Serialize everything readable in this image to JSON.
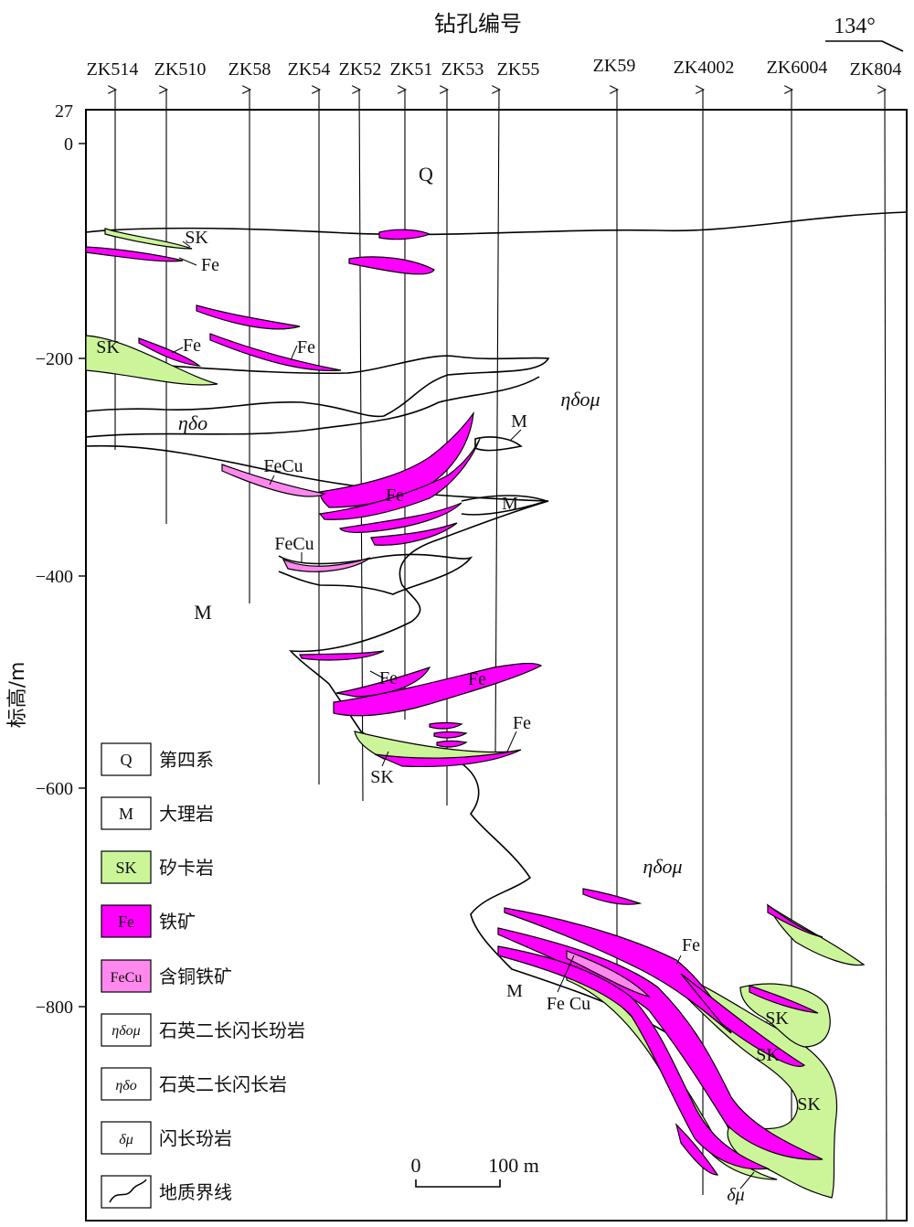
{
  "header": {
    "title": "钻孔编号",
    "azimuth": "134°"
  },
  "boreholes": [
    "ZK514",
    "ZK510",
    "ZK58",
    "ZK54",
    "ZK52",
    "ZK51",
    "ZK53",
    "ZK55",
    "ZK59",
    "ZK4002",
    "ZK6004",
    "ZK804"
  ],
  "axis": {
    "label": "标高/m",
    "ticks": [
      "27",
      "0",
      "−200",
      "−400",
      "−600",
      "−800"
    ]
  },
  "labels": {
    "Q": "Q",
    "SK": "SK",
    "Fe": "Fe",
    "FeCu": "FeCu",
    "Fe_Cu": "Fe Cu",
    "M": "M",
    "ndo": "ηδο",
    "ndom": "ηδομ",
    "dm": "δμ"
  },
  "legend": [
    {
      "code": "Q",
      "text": "第四系",
      "color": "#ffffff"
    },
    {
      "code": "M",
      "text": "大理岩",
      "color": "#ffffff"
    },
    {
      "code": "SK",
      "text": "矽卡岩",
      "color": "#ccf59a"
    },
    {
      "code": "Fe",
      "text": "铁矿",
      "color": "#ff00ff"
    },
    {
      "code": "FeCu",
      "text": "含铜铁矿",
      "color": "#ff88ee"
    },
    {
      "code": "ηδομ",
      "text": "石英二长闪长玢岩",
      "color": "#ffffff"
    },
    {
      "code": "ηδο",
      "text": "石英二长闪长岩",
      "color": "#ffffff"
    },
    {
      "code": "δμ",
      "text": "闪长玢岩",
      "color": "#ffffff"
    },
    {
      "code": "",
      "text": "地质界线",
      "color": "#ffffff"
    }
  ],
  "scale": {
    "zero": "0",
    "value": "100 m"
  },
  "colors": {
    "fe": "#ff00ff",
    "sk": "#ccf59a",
    "fecu": "#ff88ee",
    "line": "#000000"
  }
}
